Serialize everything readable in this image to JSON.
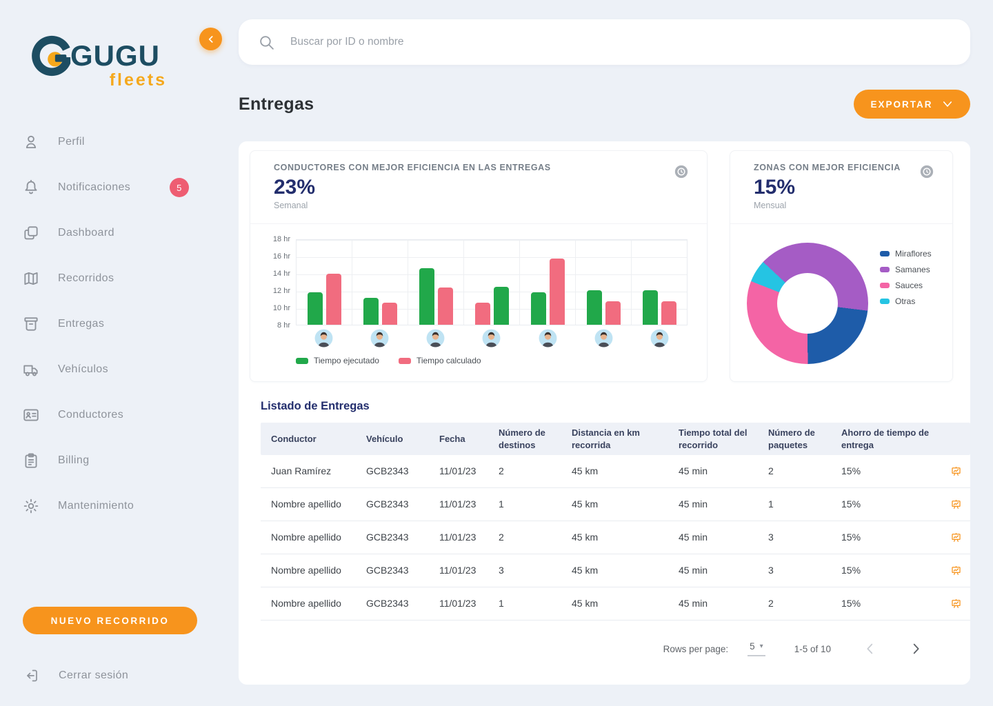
{
  "brand": {
    "name": "GUGU",
    "sub": "fleets"
  },
  "sidebar": {
    "collapse_icon": "chevron-left",
    "items": [
      {
        "label": "Perfil",
        "icon": "user"
      },
      {
        "label": "Notificaciones",
        "icon": "bell",
        "badge": "5"
      },
      {
        "label": "Dashboard",
        "icon": "copy",
        "gap": true
      },
      {
        "label": "Recorridos",
        "icon": "map"
      },
      {
        "label": "Entregas",
        "icon": "package"
      },
      {
        "label": "Vehículos",
        "icon": "truck"
      },
      {
        "label": "Conductores",
        "icon": "id-card"
      },
      {
        "label": "Billing",
        "icon": "clipboard"
      },
      {
        "label": "Mantenimiento",
        "icon": "gear"
      }
    ],
    "new_route_button": "NUEVO RECORRIDO",
    "logout_label": "Cerrar sesión",
    "logout_icon": "logout"
  },
  "search": {
    "placeholder": "Buscar por ID o nombre",
    "icon": "search"
  },
  "header": {
    "title": "Entregas",
    "export_button": "EXPORTAR",
    "export_icon": "chevron-down"
  },
  "cards": {
    "drivers": {
      "title": "CONDUCTORES CON MEJOR EFICIENCIA EN LAS ENTREGAS",
      "metric": "23%",
      "period": "Semanal",
      "icon": "history-clock"
    },
    "zones": {
      "title": "ZONAS CON MEJOR EFICIENCIA",
      "metric": "15%",
      "period": "Mensual",
      "icon": "history-clock"
    }
  },
  "chart_data": [
    {
      "type": "bar",
      "title": "CONDUCTORES CON MEJOR EFICIENCIA EN LAS ENTREGAS",
      "ylabel": "hours",
      "yticks": [
        "18 hr",
        "16 hr",
        "14 hr",
        "12 hr",
        "10 hr",
        "8 hr"
      ],
      "ymin": 8,
      "ymax": 18,
      "grid": true,
      "legend_position": "bottom",
      "legend": [
        {
          "name": "Tiempo ejecutado",
          "color": "#21A84A"
        },
        {
          "name": "Tiempo calculado",
          "color": "#F16C7F"
        }
      ],
      "x_axis_marker": "driver-avatar",
      "groups": [
        {
          "bars": [
            {
              "series": "Tiempo ejecutado",
              "value": 11.8
            },
            {
              "series": "Tiempo calculado",
              "value": 13.9
            }
          ]
        },
        {
          "bars": [
            {
              "series": "Tiempo ejecutado",
              "value": 11.1
            },
            {
              "series": "Tiempo calculado",
              "value": 10.6
            }
          ]
        },
        {
          "bars": [
            {
              "series": "Tiempo ejecutado",
              "value": 14.6
            },
            {
              "series": "Tiempo calculado",
              "value": 12.3
            }
          ]
        },
        {
          "bars": [
            {
              "series": "Tiempo calculado",
              "value": 10.6
            },
            {
              "series": "Tiempo ejecutado",
              "value": 12.4
            }
          ]
        },
        {
          "bars": [
            {
              "series": "Tiempo ejecutado",
              "value": 11.8
            },
            {
              "series": "Tiempo calculado",
              "value": 15.7
            }
          ]
        },
        {
          "bars": [
            {
              "series": "Tiempo ejecutado",
              "value": 12.0
            },
            {
              "series": "Tiempo calculado",
              "value": 10.7
            }
          ]
        },
        {
          "bars": [
            {
              "series": "Tiempo ejecutado",
              "value": 12.0
            },
            {
              "series": "Tiempo calculado",
              "value": 10.7
            }
          ]
        }
      ]
    },
    {
      "type": "donut",
      "title": "ZONAS CON MEJOR EFICIENCIA",
      "start_angle_deg": 97,
      "segments_clockwise": [
        {
          "name": "Miraflores",
          "color": "#1E5CA9",
          "percent": 23
        },
        {
          "name": "Sauces",
          "color": "#F464A5",
          "percent": 31
        },
        {
          "name": "Otras",
          "color": "#25C4E3",
          "percent": 6
        },
        {
          "name": "Samanes",
          "color": "#A55CC5",
          "percent": 40
        }
      ],
      "legend_position": "right",
      "legend_order": [
        "Miraflores",
        "Samanes",
        "Sauces",
        "Otras"
      ]
    }
  ],
  "table": {
    "title": "Listado de Entregas",
    "headers": [
      "Conductor",
      "Vehículo",
      "Fecha",
      "Número de destinos",
      "Distancia en km recorrida",
      "Tiempo total del recorrido",
      "Número de paquetes",
      "Ahorro de tiempo de entrega"
    ],
    "row_action_icon": "report-board",
    "rows": [
      {
        "conductor": "Juan Ramírez",
        "vehiculo": "GCB2343",
        "fecha": "11/01/23",
        "destinos": "2",
        "distancia": "45 km",
        "tiempo": "45 min",
        "paquetes": "2",
        "ahorro": "15%"
      },
      {
        "conductor": "Nombre apellido",
        "vehiculo": "GCB2343",
        "fecha": "11/01/23",
        "destinos": "1",
        "distancia": "45 km",
        "tiempo": "45 min",
        "paquetes": "1",
        "ahorro": "15%"
      },
      {
        "conductor": "Nombre apellido",
        "vehiculo": "GCB2343",
        "fecha": "11/01/23",
        "destinos": "2",
        "distancia": "45 km",
        "tiempo": "45 min",
        "paquetes": "3",
        "ahorro": "15%"
      },
      {
        "conductor": "Nombre apellido",
        "vehiculo": "GCB2343",
        "fecha": "11/01/23",
        "destinos": "3",
        "distancia": "45 km",
        "tiempo": "45 min",
        "paquetes": "3",
        "ahorro": "15%"
      },
      {
        "conductor": "Nombre apellido",
        "vehiculo": "GCB2343",
        "fecha": "11/01/23",
        "destinos": "1",
        "distancia": "45 km",
        "tiempo": "45 min",
        "paquetes": "2",
        "ahorro": "15%"
      }
    ]
  },
  "pagination": {
    "rows_per_page_label": "Rows per page:",
    "rows_per_page_value": "5",
    "range_label": "1-5 of 10",
    "prev_icon": "chevron-left",
    "next_icon": "chevron-right"
  },
  "colors": {
    "accent_orange": "#F7941D",
    "brand_teal": "#1D4D62",
    "brand_yellow": "#F5A81C",
    "badge_red": "#EE5D72",
    "metric_navy": "#232E6D",
    "bar_green": "#21A84A",
    "bar_pink": "#F16C7F",
    "donut_blue": "#1E5CA9",
    "donut_purple": "#A55CC5",
    "donut_pink": "#F464A5",
    "donut_cyan": "#25C4E3"
  }
}
